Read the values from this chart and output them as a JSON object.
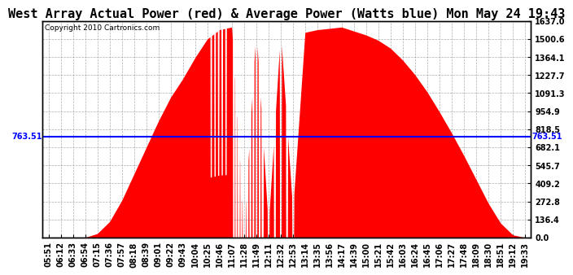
{
  "title": "West Array Actual Power (red) & Average Power (Watts blue) Mon May 24 19:43",
  "copyright": "Copyright 2010 Cartronics.com",
  "ymin": 0.0,
  "ymax": 1637.0,
  "yticks": [
    0.0,
    136.4,
    272.8,
    409.2,
    545.7,
    682.1,
    818.5,
    954.9,
    1091.3,
    1227.7,
    1364.1,
    1500.6,
    1637.0
  ],
  "average_power": 763.51,
  "fill_color": "#FF0000",
  "line_color": "#FF0000",
  "avg_line_color": "#0000FF",
  "bg_color": "#FFFFFF",
  "grid_color": "#999999",
  "title_fontsize": 11,
  "tick_fontsize": 7,
  "x_label_rotation": 90,
  "time_labels": [
    "05:51",
    "06:12",
    "06:33",
    "06:54",
    "07:15",
    "07:36",
    "07:57",
    "08:18",
    "08:39",
    "09:01",
    "09:22",
    "09:43",
    "10:04",
    "10:25",
    "10:46",
    "11:07",
    "11:28",
    "11:49",
    "12:11",
    "12:32",
    "12:53",
    "13:14",
    "13:35",
    "13:56",
    "14:17",
    "14:39",
    "15:00",
    "15:21",
    "15:42",
    "16:03",
    "16:24",
    "16:45",
    "17:06",
    "17:27",
    "17:48",
    "18:09",
    "18:30",
    "18:51",
    "19:12",
    "19:33"
  ],
  "power_values": [
    0,
    0,
    0,
    0,
    30,
    120,
    280,
    480,
    680,
    880,
    1060,
    1200,
    1360,
    1500,
    1570,
    1590,
    50,
    1580,
    80,
    1560,
    200,
    1550,
    1570,
    1580,
    1590,
    1560,
    1530,
    1490,
    1430,
    1340,
    1230,
    1100,
    950,
    790,
    620,
    440,
    260,
    110,
    20,
    0
  ]
}
